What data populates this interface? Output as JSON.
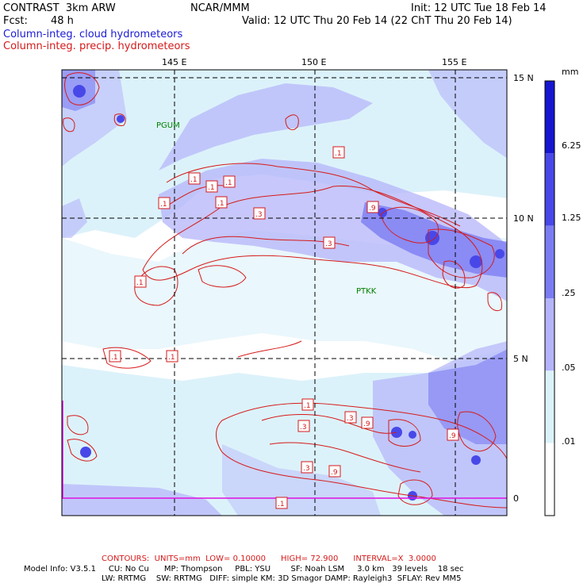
{
  "header": {
    "model": "CONTRAST  3km ARW",
    "org": "NCAR/MMM",
    "init": "Init: 12 UTC Tue 18 Feb 14",
    "fcst_label": "Fcst:",
    "fcst_value": "48 h",
    "valid": "Valid: 12 UTC Thu 20 Feb 14 (22 ChT Thu 20 Feb 14)",
    "legend_cloud": "Column-integ. cloud hydrometeors",
    "legend_precip": "Column-integ. precip. hydrometeors"
  },
  "map": {
    "lon_labels": [
      "145 E",
      "150 E",
      "155 E"
    ],
    "lat_labels": [
      "15 N",
      "10 N",
      "5 N",
      "0"
    ],
    "stations": [
      "PGUM",
      "PTKK"
    ],
    "contour_labels": [
      ".1",
      ".1",
      ".1",
      ".1",
      ".1",
      ".3",
      ".9",
      ".3",
      ".1",
      ".1",
      ".1",
      ".1",
      ".3",
      ".9",
      ".3",
      ".9",
      ".1",
      ".3",
      ".9",
      ".1"
    ]
  },
  "colorbar": {
    "unit": "mm",
    "levels": [
      "6.25",
      "1.25",
      ".25",
      ".05",
      ".01"
    ],
    "colors": [
      "#1616d0",
      "#4848e8",
      "#7c7cf2",
      "#b4b4fa",
      "#dcf2fa",
      "#ffffff"
    ]
  },
  "footer": {
    "contours": "CONTOURS:  UNITS=mm  LOW= 0.10000      HIGH= 72.900      INTERVAL=X  3.0000",
    "info1": "Model Info: V3.5.1     CU: No Cu      MP: Thompson     PBL: YSU        SF: Noah LSM     3.0 km   39 levels    18 sec",
    "info2": "LW: RRTMG    SW: RRTMG   DIFF: simple KM: 3D Smagor DAMP: Rayleigh3  SFLAY: Rev MM5"
  }
}
